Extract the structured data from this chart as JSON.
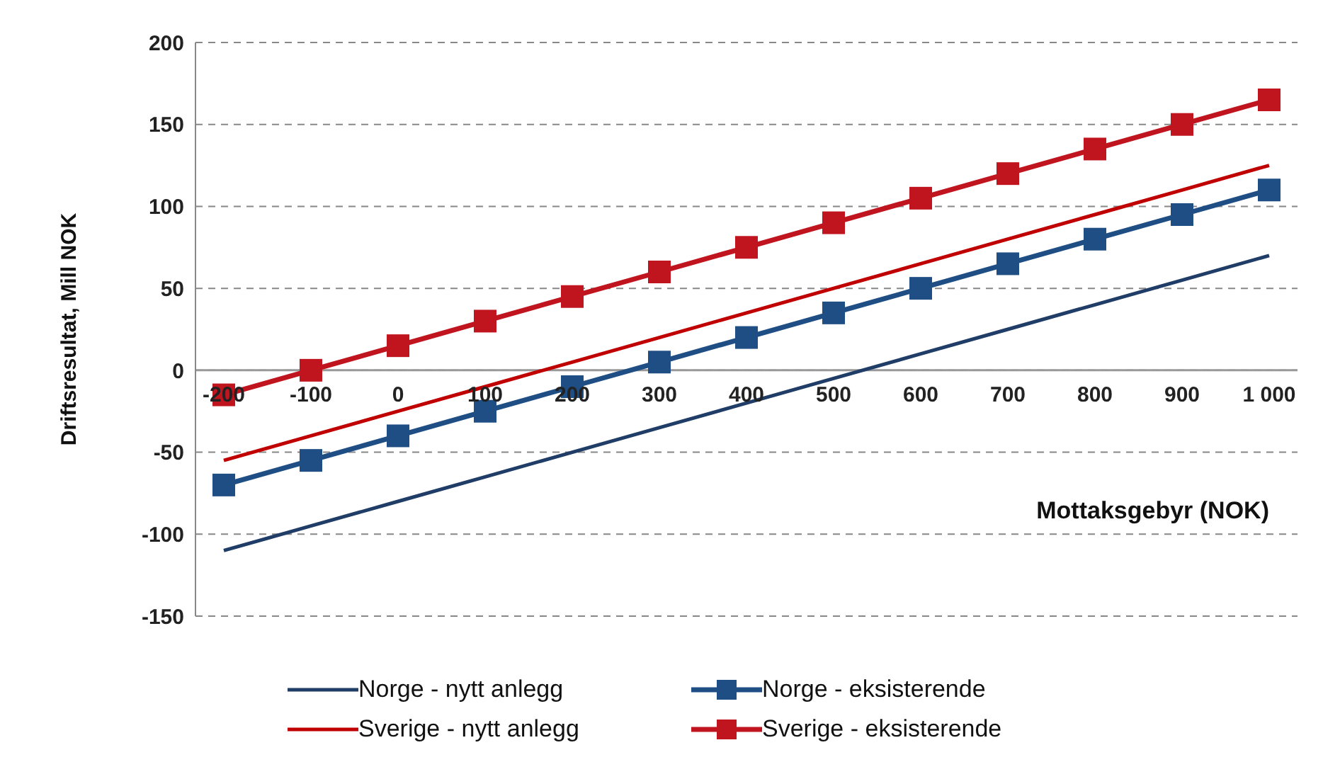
{
  "chart_data": {
    "type": "line",
    "xlabel": "Mottaksgebyr (NOK)",
    "ylabel": "Driftsresultat,  Mill NOK",
    "categories": [
      "-200",
      "-100",
      "0",
      "100",
      "200",
      "300",
      "400",
      "500",
      "600",
      "700",
      "800",
      "900",
      "1 000"
    ],
    "series": [
      {
        "name": "Norge - nytt anlegg",
        "color": "#1f3d66",
        "marker": "none",
        "values": [
          -110,
          -95,
          -80,
          -65,
          -50,
          -35,
          -20,
          -5,
          10,
          25,
          40,
          55,
          70
        ]
      },
      {
        "name": "Norge - eksisterende",
        "color": "#1f4e85",
        "marker": "square",
        "values": [
          -70,
          -55,
          -40,
          -25,
          -10,
          5,
          20,
          35,
          50,
          65,
          80,
          95,
          110
        ]
      },
      {
        "name": "Sverige - nytt anlegg",
        "color": "#c00000",
        "marker": "none",
        "values": [
          -55,
          -40,
          -25,
          -10,
          5,
          20,
          35,
          50,
          65,
          80,
          95,
          110,
          125
        ]
      },
      {
        "name": "Sverige - eksisterende",
        "color": "#c0141e",
        "marker": "square",
        "values": [
          -15,
          0,
          15,
          30,
          45,
          60,
          75,
          90,
          105,
          120,
          135,
          150,
          165
        ]
      }
    ],
    "ylim": [
      -150,
      200
    ],
    "yticks": [
      -150,
      -100,
      -50,
      0,
      50,
      100,
      150,
      200
    ],
    "grid": "y",
    "legend": "bottom"
  }
}
